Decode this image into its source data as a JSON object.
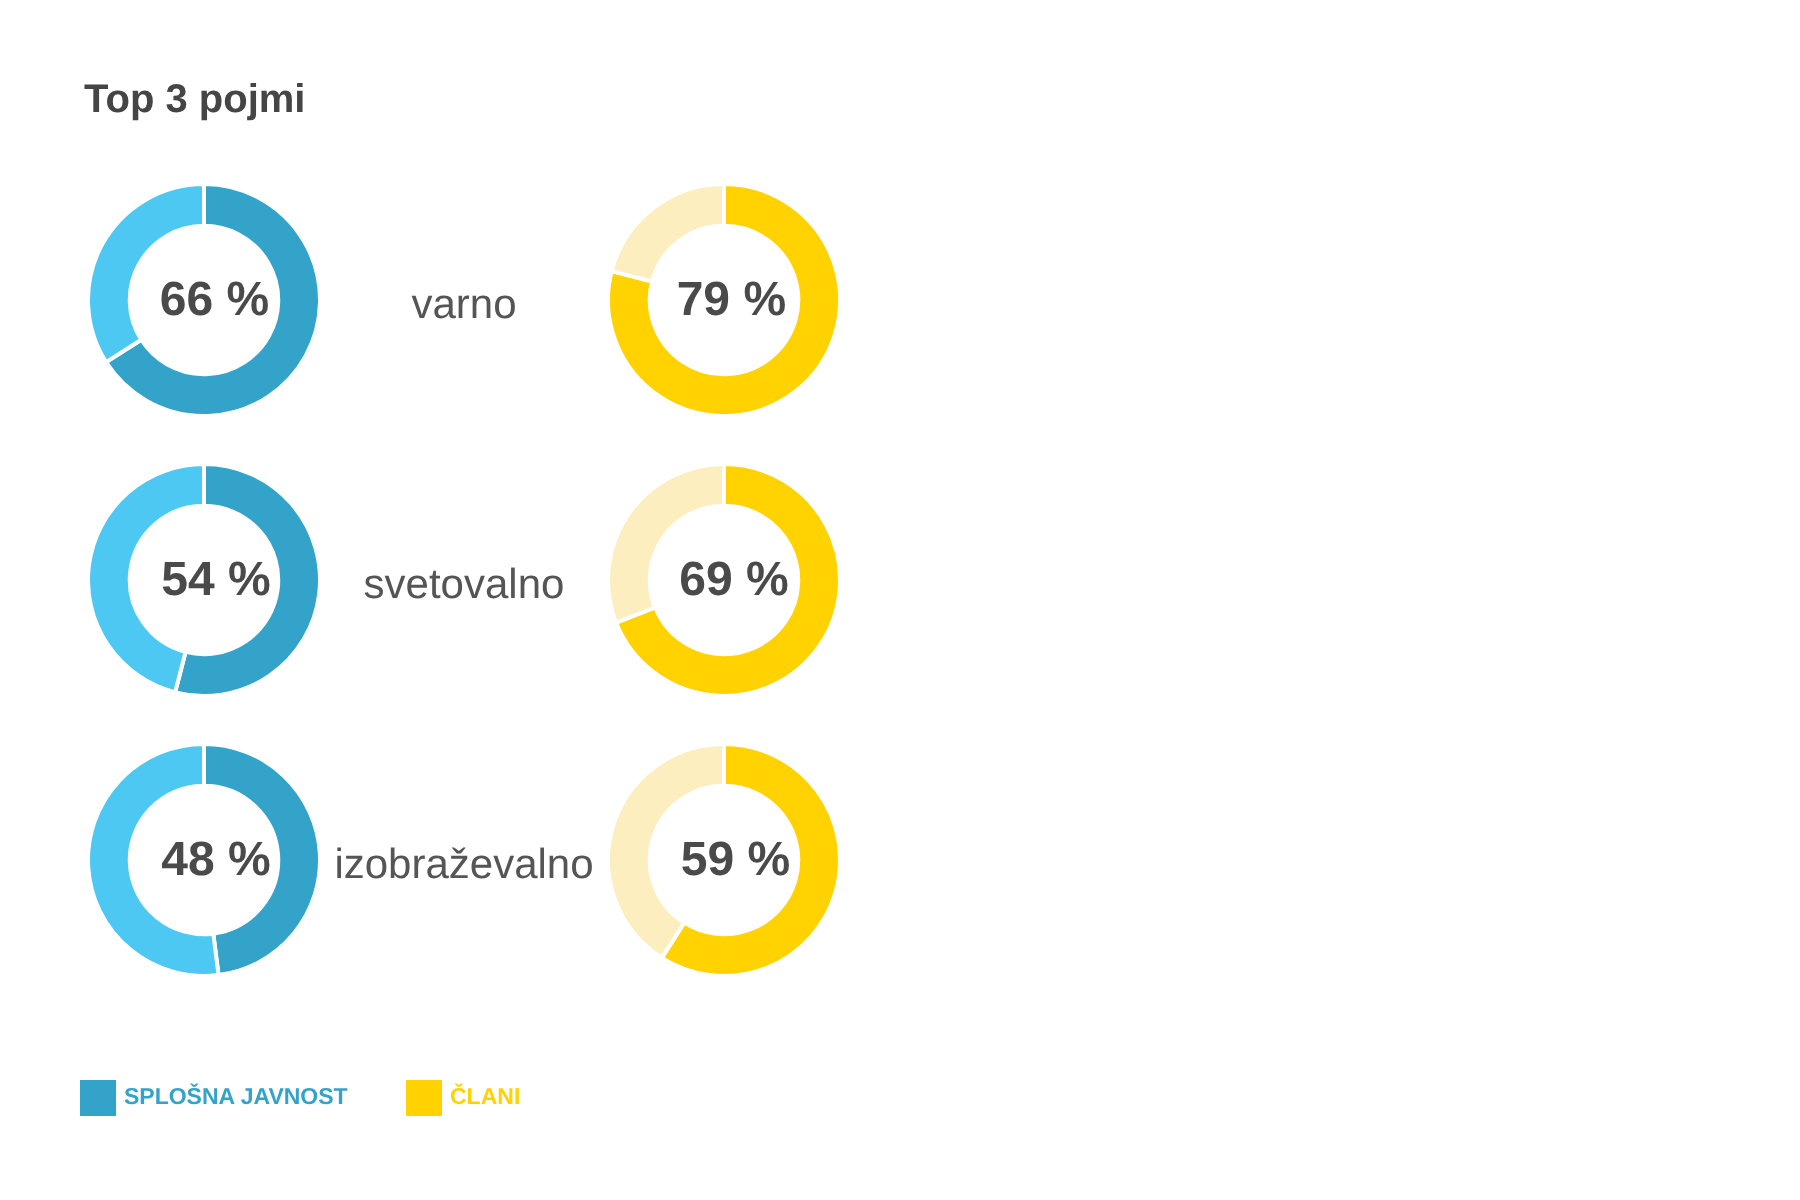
{
  "chart_data": [
    {
      "type": "donut",
      "title": "Top 3 pojmi",
      "categories": [
        "SPLOŠNA JAVNOST",
        null
      ],
      "values": [
        66,
        34
      ],
      "colors": [
        "#33a3c9",
        "#4cc8f2"
      ],
      "value_labels": [
        "66 %",
        null
      ],
      "annotations": [
        "varno"
      ],
      "legend": "bottom"
    },
    {
      "type": "donut",
      "categories": [
        "ČLANI",
        null
      ],
      "values": [
        79,
        21
      ],
      "colors": [
        "#ffd200",
        "#fdeec0"
      ],
      "value_labels": [
        "79 %",
        null
      ],
      "legend": "bottom"
    },
    {
      "type": "donut",
      "categories": [
        null,
        null
      ],
      "values": [
        54,
        46
      ],
      "colors": [
        "#33a3c9",
        "#4cc8f2"
      ],
      "value_labels": [
        "54 %",
        null
      ],
      "annotations": [
        "svetovalno"
      ]
    },
    {
      "type": "donut",
      "categories": [
        null,
        null
      ],
      "values": [
        69,
        31
      ],
      "colors": [
        "#ffd200",
        "#fdeec0"
      ],
      "value_labels": [
        "69 %",
        null
      ]
    },
    {
      "type": "donut",
      "categories": [
        null,
        null
      ],
      "values": [
        48,
        52
      ],
      "colors": [
        "#33a3c9",
        "#4cc8f2"
      ],
      "value_labels": [
        "48 %",
        null
      ],
      "annotations": [
        "izobraževalno"
      ]
    },
    {
      "type": "donut",
      "categories": [
        null,
        null
      ],
      "values": [
        59,
        41
      ],
      "colors": [
        "#ffd200",
        "#fdeec0"
      ],
      "value_labels": [
        "59 %",
        null
      ]
    }
  ]
}
